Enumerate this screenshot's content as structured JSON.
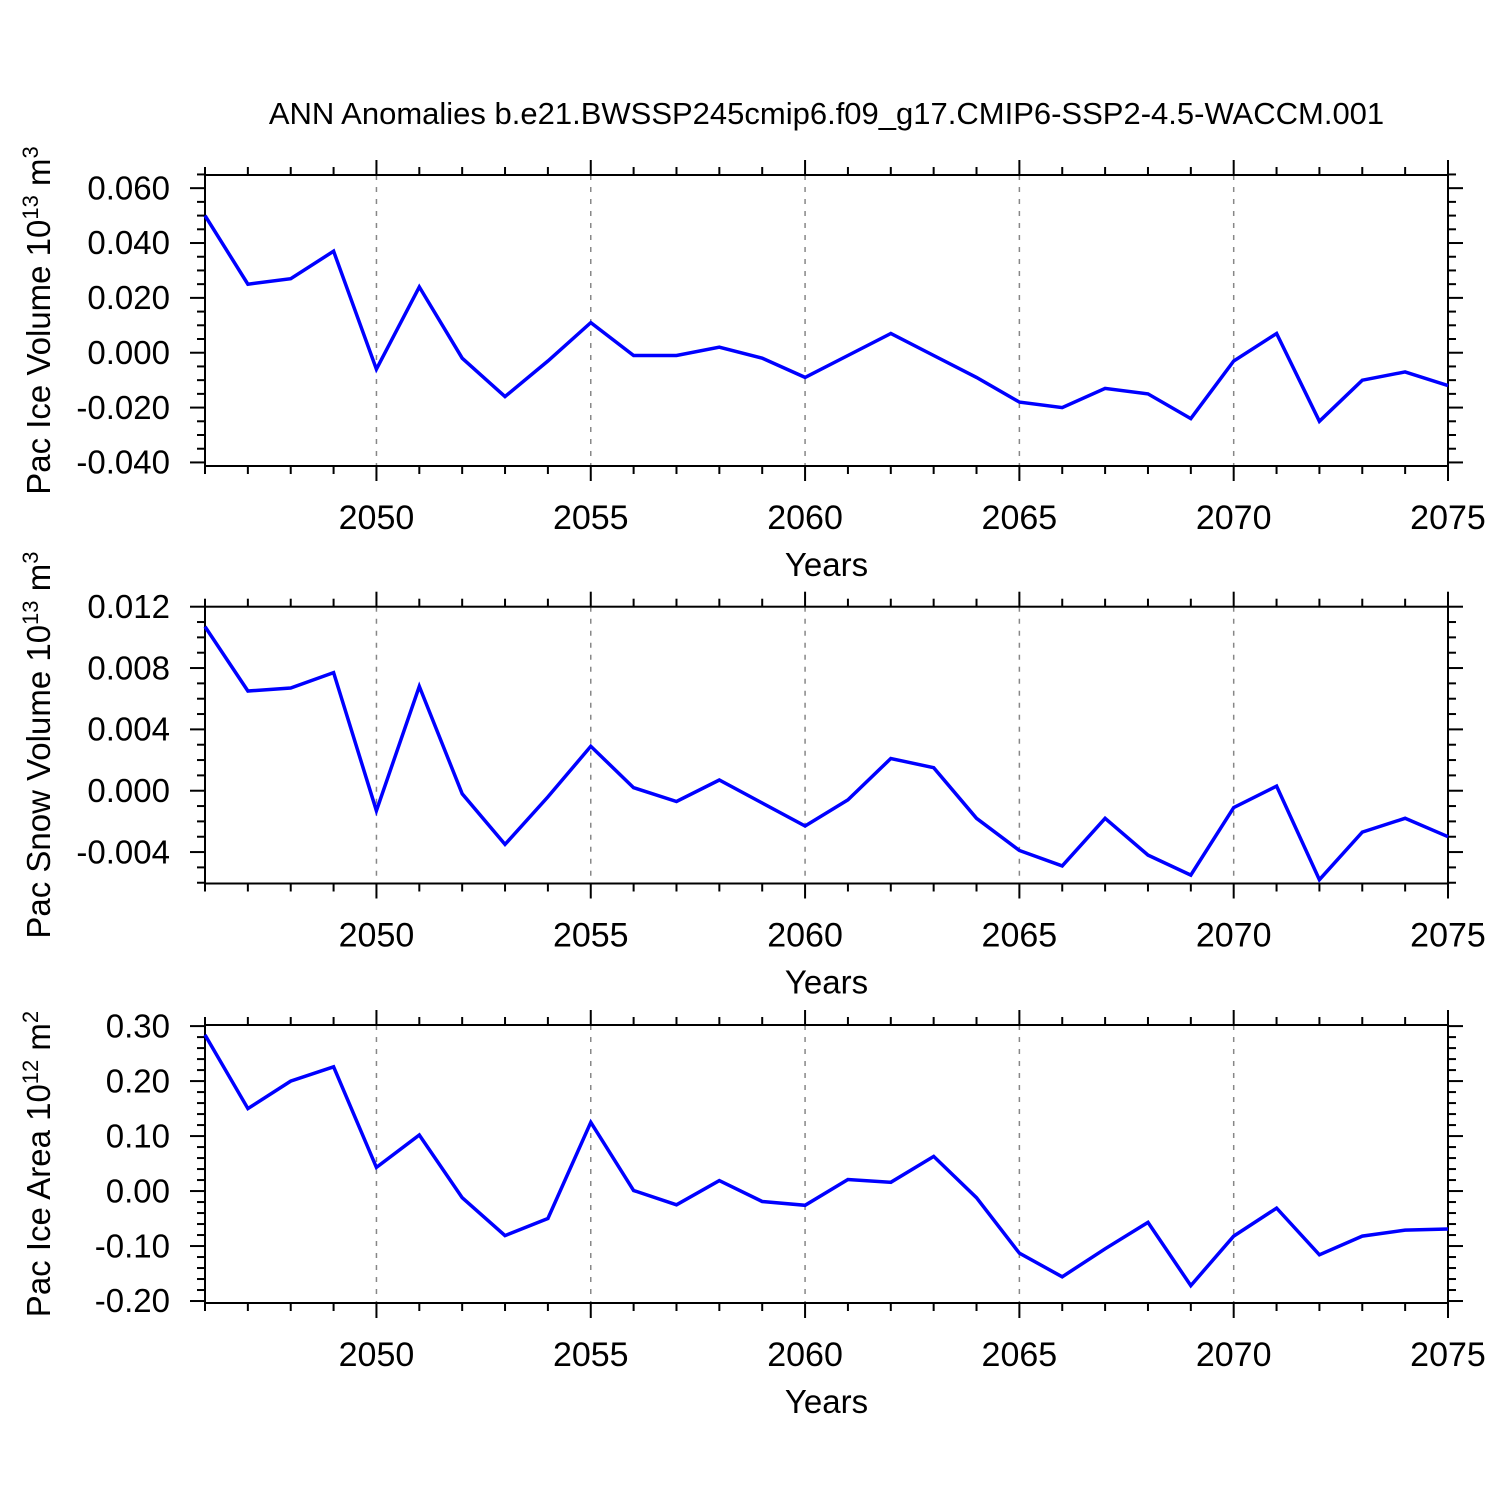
{
  "title": "ANN Anomalies b.e21.BWSSP245cmip6.f09_g17.CMIP6-SSP2-4.5-WACCM.001",
  "line_color": "#0000ff",
  "grid_color": "#878787",
  "axis_color": "#000000",
  "x_axis": {
    "label": "Years",
    "xlim": [
      2046,
      2075
    ],
    "ticks": [
      {
        "label": "2050",
        "value": 2050
      },
      {
        "label": "2055",
        "value": 2055
      },
      {
        "label": "2060",
        "value": 2060
      },
      {
        "label": "2065",
        "value": 2065
      },
      {
        "label": "2070",
        "value": 2070
      },
      {
        "label": "2075",
        "value": 2075
      }
    ],
    "minor_step": 1,
    "gridline_x": [
      2050,
      2055,
      2060,
      2065,
      2070
    ]
  },
  "chart_data": [
    {
      "type": "line",
      "name": "pac-ice-volume",
      "ylabel_segments": [
        {
          "t": "Pac Ice Volume 10",
          "sup": false
        },
        {
          "t": "13",
          "sup": true
        },
        {
          "t": " m",
          "sup": false
        },
        {
          "t": "3",
          "sup": true
        }
      ],
      "xlabel": "Years",
      "x": [
        2046,
        2047,
        2048,
        2049,
        2050,
        2051,
        2052,
        2053,
        2054,
        2055,
        2056,
        2057,
        2058,
        2059,
        2060,
        2061,
        2062,
        2063,
        2064,
        2065,
        2066,
        2067,
        2068,
        2069,
        2070,
        2071,
        2072,
        2073,
        2074,
        2075
      ],
      "values": [
        0.05,
        0.025,
        0.027,
        0.037,
        -0.006,
        0.024,
        -0.002,
        -0.016,
        -0.003,
        0.011,
        -0.001,
        -0.001,
        0.002,
        -0.002,
        -0.009,
        -0.001,
        0.007,
        -0.001,
        -0.009,
        -0.018,
        -0.02,
        -0.013,
        -0.015,
        -0.024,
        -0.003,
        0.007,
        -0.025,
        -0.01,
        -0.007,
        -0.012
      ],
      "ylim": [
        -0.0413,
        0.0648
      ],
      "yticks": [
        {
          "label": "0.060",
          "value": 0.06
        },
        {
          "label": "0.040",
          "value": 0.04
        },
        {
          "label": "0.020",
          "value": 0.02
        },
        {
          "label": "0.000",
          "value": 0.0
        },
        {
          "label": "-0.020",
          "value": -0.02
        },
        {
          "label": "-0.040",
          "value": -0.04
        }
      ],
      "y_minor_step": 0.005
    },
    {
      "type": "line",
      "name": "pac-snow-volume",
      "ylabel_segments": [
        {
          "t": "Pac Snow Volume 10",
          "sup": false
        },
        {
          "t": "13",
          "sup": true
        },
        {
          "t": " m",
          "sup": false
        },
        {
          "t": "3",
          "sup": true
        }
      ],
      "xlabel": "Years",
      "x": [
        2046,
        2047,
        2048,
        2049,
        2050,
        2051,
        2052,
        2053,
        2054,
        2055,
        2056,
        2057,
        2058,
        2059,
        2060,
        2061,
        2062,
        2063,
        2064,
        2065,
        2066,
        2067,
        2068,
        2069,
        2070,
        2071,
        2072,
        2073,
        2074,
        2075
      ],
      "values": [
        0.0107,
        0.0065,
        0.0067,
        0.0077,
        -0.0013,
        0.0068,
        -0.0002,
        -0.0035,
        -0.0004,
        0.0029,
        0.0002,
        -0.0007,
        0.0007,
        -0.0008,
        -0.0023,
        -0.0006,
        0.0021,
        0.0015,
        -0.0018,
        -0.0039,
        -0.0049,
        -0.0018,
        -0.0042,
        -0.0055,
        -0.0011,
        0.0003,
        -0.0058,
        -0.0027,
        -0.0018,
        -0.003
      ],
      "ylim": [
        -0.00605,
        0.012
      ],
      "yticks": [
        {
          "label": "0.012",
          "value": 0.012
        },
        {
          "label": "0.008",
          "value": 0.008
        },
        {
          "label": "0.004",
          "value": 0.004
        },
        {
          "label": "0.000",
          "value": 0.0
        },
        {
          "label": "-0.004",
          "value": -0.004
        }
      ],
      "y_minor_step": 0.001
    },
    {
      "type": "line",
      "name": "pac-ice-area",
      "ylabel_segments": [
        {
          "t": "Pac Ice Area 10",
          "sup": false
        },
        {
          "t": "12",
          "sup": true
        },
        {
          "t": " m",
          "sup": false
        },
        {
          "t": "2",
          "sup": true
        }
      ],
      "xlabel": "Years",
      "x": [
        2046,
        2047,
        2048,
        2049,
        2050,
        2051,
        2052,
        2053,
        2054,
        2055,
        2056,
        2057,
        2058,
        2059,
        2060,
        2061,
        2062,
        2063,
        2064,
        2065,
        2066,
        2067,
        2068,
        2069,
        2070,
        2071,
        2072,
        2073,
        2074,
        2075
      ],
      "values": [
        0.284,
        0.15,
        0.2,
        0.226,
        0.043,
        0.102,
        -0.012,
        -0.081,
        -0.05,
        0.125,
        0.001,
        -0.025,
        0.019,
        -0.019,
        -0.026,
        0.021,
        0.016,
        0.063,
        -0.012,
        -0.113,
        -0.156,
        -0.105,
        -0.057,
        -0.172,
        -0.082,
        -0.031,
        -0.116,
        -0.082,
        -0.071,
        -0.069
      ],
      "y_minor_step": 0.02,
      "ylim": [
        -0.2036,
        0.302
      ],
      "yticks": [
        {
          "label": "0.30",
          "value": 0.3
        },
        {
          "label": "0.20",
          "value": 0.2
        },
        {
          "label": "0.10",
          "value": 0.1
        },
        {
          "label": "0.00",
          "value": 0.0
        },
        {
          "label": "-0.10",
          "value": -0.1
        },
        {
          "label": "-0.20",
          "value": -0.2
        }
      ]
    }
  ]
}
